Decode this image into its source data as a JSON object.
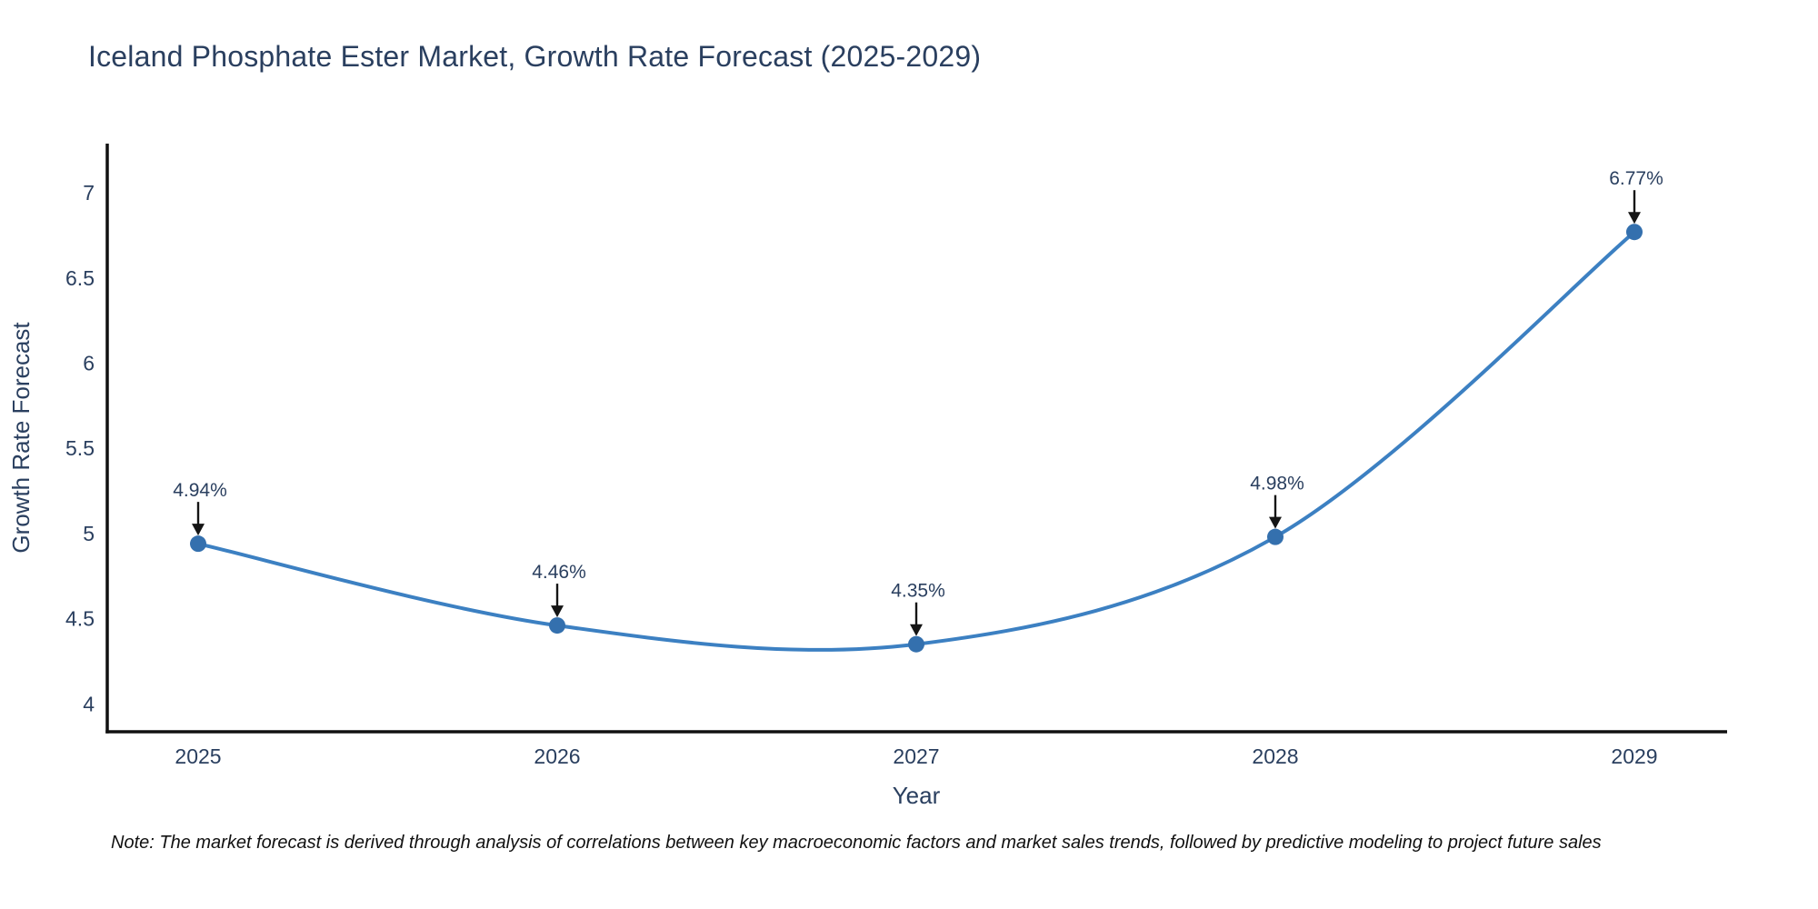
{
  "title": "Iceland Phosphate Ester Market, Growth Rate Forecast (2025-2029)",
  "footnote": "Note: The market forecast is derived through analysis of correlations between key macroeconomic factors and market sales trends, followed by predictive modeling to project future sales",
  "chart_data": {
    "type": "line",
    "line_shape": "spline",
    "x": [
      2025,
      2026,
      2027,
      2028,
      2029
    ],
    "values": [
      4.94,
      4.46,
      4.35,
      4.98,
      6.77
    ],
    "point_labels": [
      "4.94%",
      "4.46%",
      "4.35%",
      "4.98%",
      "6.77%"
    ],
    "title": "Iceland Phosphate Ester Market, Growth Rate Forecast (2025-2029)",
    "xlabel": "Year",
    "ylabel": "Growth Rate Forecast",
    "yticks": [
      "4",
      "4.5",
      "5",
      "5.5",
      "6",
      "6.5",
      "7"
    ],
    "ytick_values": [
      4,
      4.5,
      5,
      5.5,
      6,
      6.5,
      7
    ],
    "ylim": [
      3.84,
      7.3
    ],
    "grid": false,
    "legend_position": "none",
    "colors": {
      "line": "#3c80c2",
      "marker": "#3470ae",
      "axis": "#111111",
      "text": "#2a3f5f",
      "annotation_arrow": "#151515"
    }
  }
}
